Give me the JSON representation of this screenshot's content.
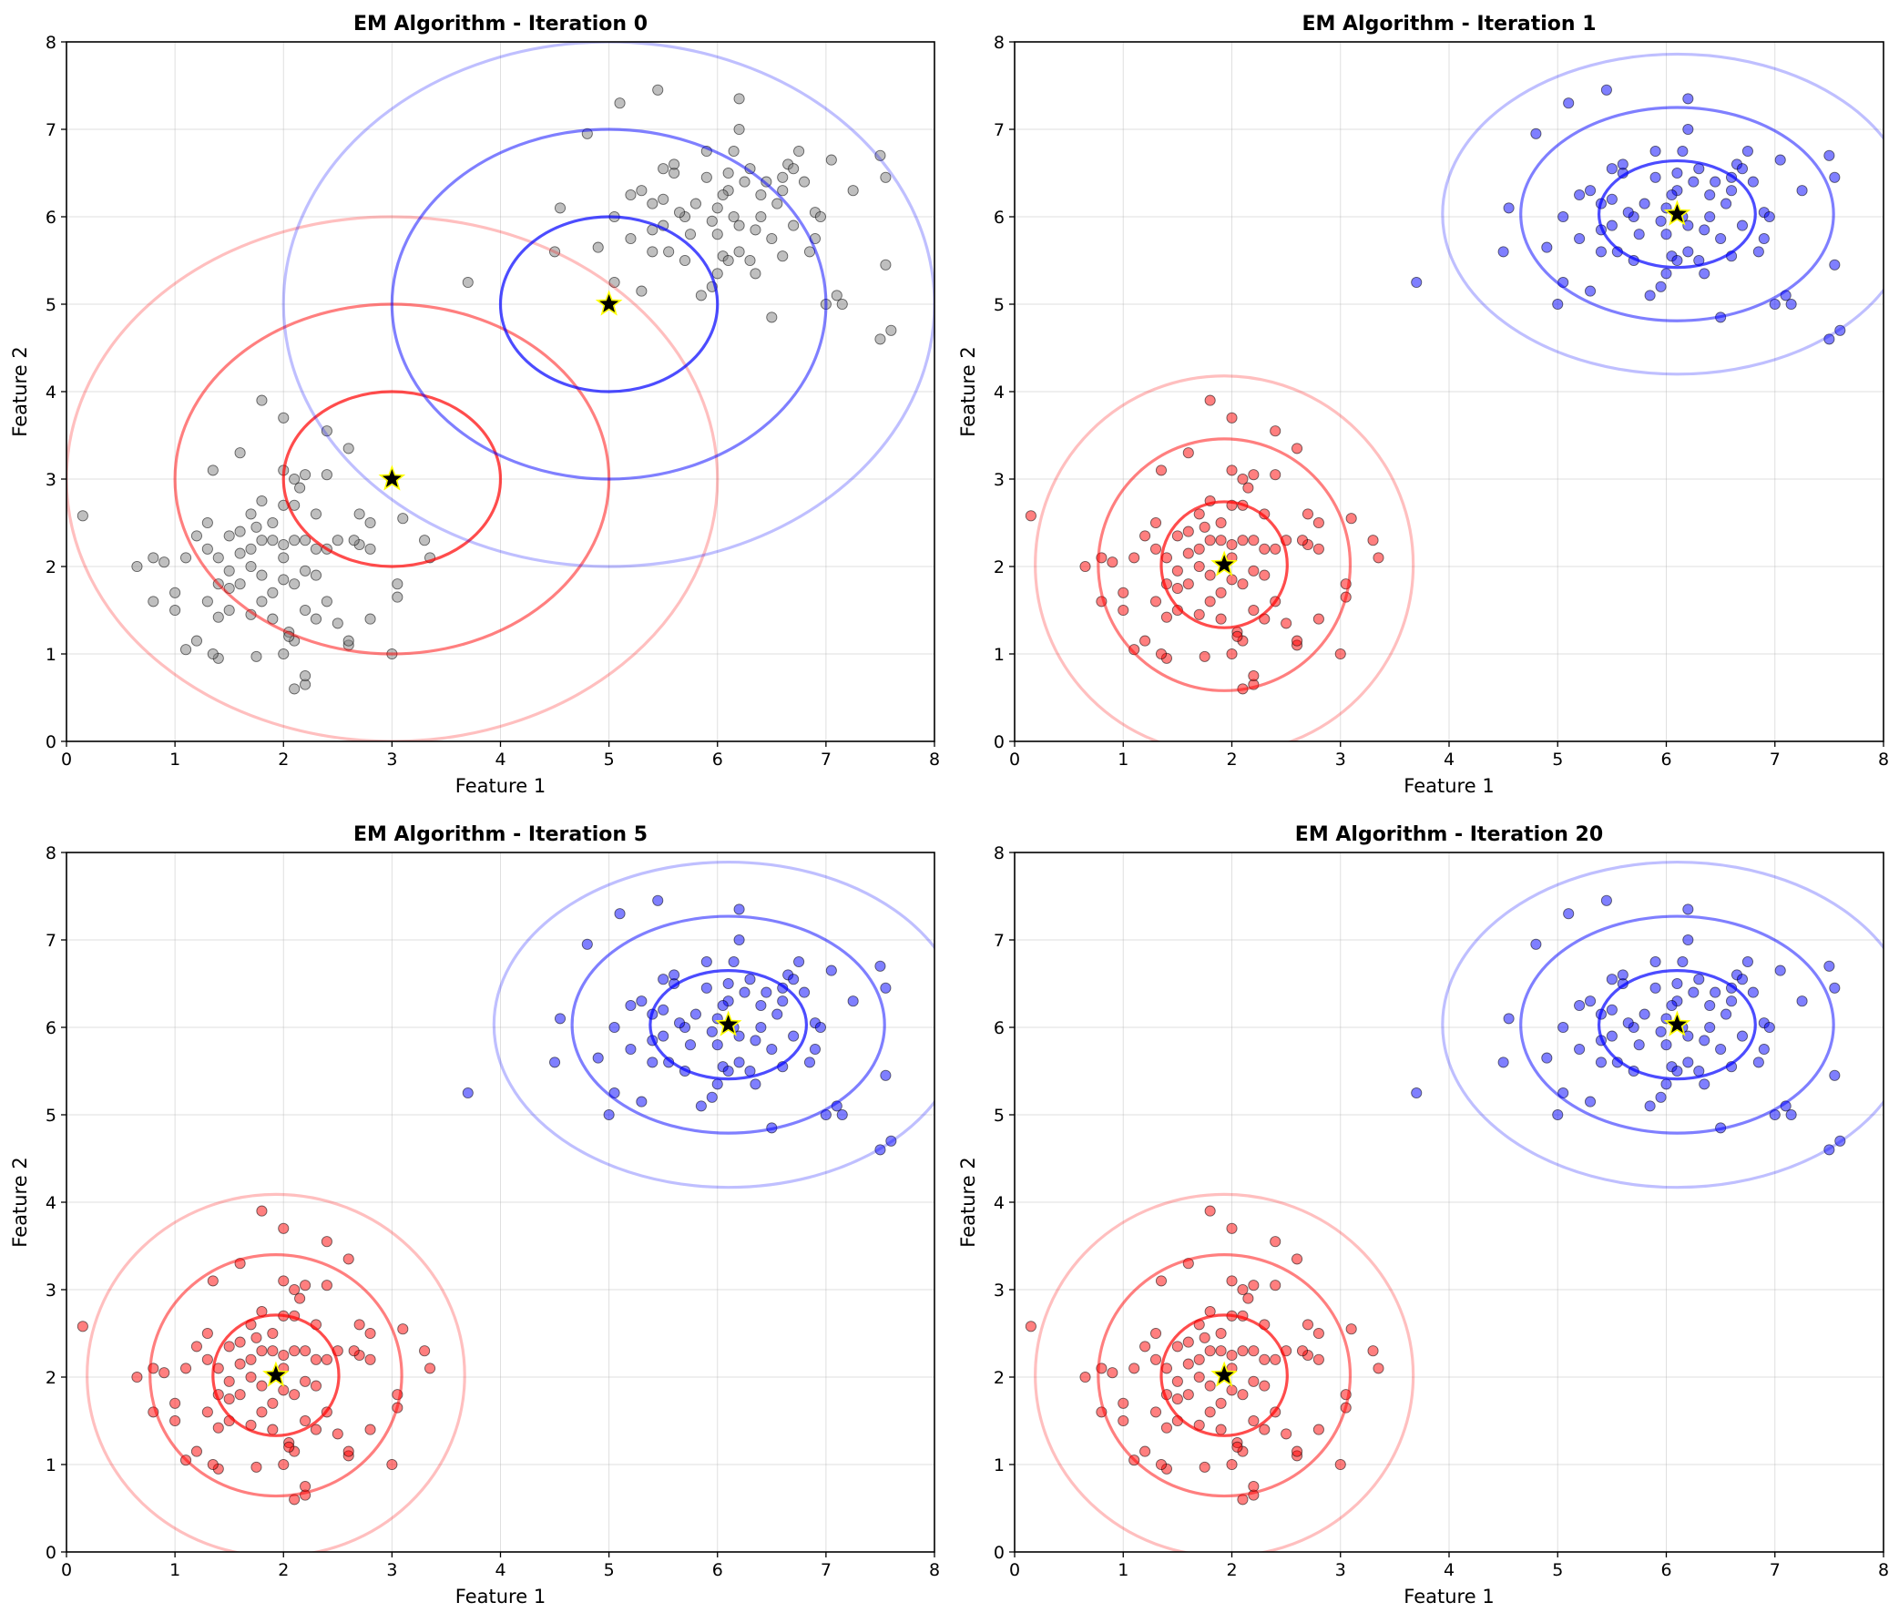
{
  "colors": {
    "unassigned": "#808080",
    "cluster1": "#ff0000",
    "cluster2": "#0000ff",
    "center_fill": "#000000",
    "center_outline": "#ffff00"
  },
  "points": [
    [
      2.0,
      3.1
    ],
    [
      2.1,
      3.0
    ],
    [
      2.0,
      2.7
    ],
    [
      1.7,
      2.6
    ],
    [
      1.9,
      2.5
    ],
    [
      2.1,
      2.7
    ],
    [
      2.2,
      2.3
    ],
    [
      1.9,
      2.3
    ],
    [
      2.0,
      2.25
    ],
    [
      1.6,
      2.15
    ],
    [
      1.7,
      2.0
    ],
    [
      1.8,
      1.9
    ],
    [
      2.0,
      1.85
    ],
    [
      2.2,
      1.95
    ],
    [
      2.3,
      2.2
    ],
    [
      2.1,
      1.8
    ],
    [
      1.9,
      1.7
    ],
    [
      1.6,
      1.8
    ],
    [
      1.5,
      1.75
    ],
    [
      1.4,
      1.8
    ],
    [
      1.4,
      2.1
    ],
    [
      1.3,
      2.2
    ],
    [
      1.2,
      2.35
    ],
    [
      1.3,
      2.5
    ],
    [
      1.5,
      2.35
    ],
    [
      1.6,
      2.4
    ],
    [
      1.7,
      2.2
    ],
    [
      1.8,
      2.3
    ],
    [
      1.1,
      2.1
    ],
    [
      0.9,
      2.05
    ],
    [
      0.8,
      2.1
    ],
    [
      0.65,
      2.0
    ],
    [
      1.0,
      1.7
    ],
    [
      0.8,
      1.6
    ],
    [
      1.0,
      1.5
    ],
    [
      1.3,
      1.6
    ],
    [
      1.5,
      1.5
    ],
    [
      1.7,
      1.45
    ],
    [
      1.9,
      1.4
    ],
    [
      2.05,
      1.25
    ],
    [
      2.1,
      1.15
    ],
    [
      2.05,
      1.2
    ],
    [
      2.0,
      1.0
    ],
    [
      2.1,
      0.6
    ],
    [
      2.2,
      0.65
    ],
    [
      2.2,
      0.75
    ],
    [
      1.75,
      0.97
    ],
    [
      1.4,
      0.95
    ],
    [
      1.35,
      1.0
    ],
    [
      1.2,
      1.15
    ],
    [
      1.1,
      1.05
    ],
    [
      1.4,
      1.42
    ],
    [
      1.8,
      1.6
    ],
    [
      2.2,
      1.5
    ],
    [
      2.3,
      1.4
    ],
    [
      2.4,
      1.6
    ],
    [
      2.5,
      1.35
    ],
    [
      2.6,
      1.1
    ],
    [
      2.6,
      1.15
    ],
    [
      2.8,
      1.4
    ],
    [
      3.0,
      1.0
    ],
    [
      3.05,
      1.65
    ],
    [
      3.05,
      1.8
    ],
    [
      2.8,
      2.2
    ],
    [
      2.7,
      2.25
    ],
    [
      2.65,
      2.3
    ],
    [
      2.7,
      2.6
    ],
    [
      2.8,
      2.5
    ],
    [
      2.5,
      2.3
    ],
    [
      2.4,
      2.2
    ],
    [
      2.3,
      1.9
    ],
    [
      2.1,
      2.3
    ],
    [
      2.3,
      2.6
    ],
    [
      2.4,
      3.05
    ],
    [
      2.2,
      3.05
    ],
    [
      2.6,
      3.35
    ],
    [
      2.4,
      3.55
    ],
    [
      2.0,
      3.7
    ],
    [
      1.8,
      3.9
    ],
    [
      1.6,
      3.3
    ],
    [
      1.35,
      3.1
    ],
    [
      0.15,
      2.58
    ],
    [
      1.8,
      2.75
    ],
    [
      2.15,
      2.9
    ],
    [
      3.3,
      2.3
    ],
    [
      3.35,
      2.1
    ],
    [
      3.1,
      2.55
    ],
    [
      2.0,
      2.1
    ],
    [
      1.5,
      1.95
    ],
    [
      1.75,
      2.45
    ],
    [
      3.7,
      5.25
    ],
    [
      4.5,
      5.6
    ],
    [
      4.55,
      6.1
    ],
    [
      4.8,
      6.95
    ],
    [
      4.9,
      5.65
    ],
    [
      5.0,
      5.0
    ],
    [
      5.05,
      5.25
    ],
    [
      5.05,
      6.0
    ],
    [
      5.1,
      7.3
    ],
    [
      5.2,
      5.75
    ],
    [
      5.3,
      6.3
    ],
    [
      5.3,
      5.15
    ],
    [
      5.4,
      5.6
    ],
    [
      5.4,
      5.85
    ],
    [
      5.4,
      6.15
    ],
    [
      5.5,
      5.9
    ],
    [
      5.5,
      6.2
    ],
    [
      5.55,
      5.6
    ],
    [
      5.6,
      6.5
    ],
    [
      5.6,
      6.6
    ],
    [
      5.7,
      6.0
    ],
    [
      5.7,
      5.5
    ],
    [
      5.75,
      5.8
    ],
    [
      5.8,
      6.15
    ],
    [
      5.85,
      5.1
    ],
    [
      5.9,
      6.45
    ],
    [
      5.9,
      6.75
    ],
    [
      5.95,
      5.95
    ],
    [
      6.0,
      5.8
    ],
    [
      6.0,
      6.1
    ],
    [
      6.0,
      5.35
    ],
    [
      6.05,
      5.55
    ],
    [
      6.1,
      5.5
    ],
    [
      6.1,
      6.3
    ],
    [
      6.1,
      6.5
    ],
    [
      6.15,
      6.0
    ],
    [
      6.2,
      5.6
    ],
    [
      6.2,
      5.9
    ],
    [
      6.2,
      7.0
    ],
    [
      6.25,
      6.4
    ],
    [
      6.3,
      6.55
    ],
    [
      6.3,
      5.5
    ],
    [
      6.35,
      5.85
    ],
    [
      6.4,
      6.25
    ],
    [
      6.4,
      6.0
    ],
    [
      6.45,
      6.4
    ],
    [
      6.5,
      4.85
    ],
    [
      6.5,
      5.75
    ],
    [
      6.55,
      6.15
    ],
    [
      6.6,
      6.45
    ],
    [
      6.6,
      5.55
    ],
    [
      6.65,
      6.6
    ],
    [
      6.7,
      5.9
    ],
    [
      6.75,
      6.75
    ],
    [
      6.8,
      6.4
    ],
    [
      6.85,
      5.6
    ],
    [
      6.9,
      6.05
    ],
    [
      6.95,
      6.0
    ],
    [
      7.0,
      5.0
    ],
    [
      7.05,
      6.65
    ],
    [
      7.1,
      5.1
    ],
    [
      7.15,
      5.0
    ],
    [
      7.25,
      6.3
    ],
    [
      7.5,
      4.6
    ],
    [
      7.55,
      5.45
    ],
    [
      7.6,
      4.7
    ],
    [
      7.5,
      6.7
    ],
    [
      7.55,
      6.45
    ],
    [
      6.2,
      7.35
    ],
    [
      5.45,
      7.45
    ],
    [
      6.35,
      5.35
    ],
    [
      6.15,
      6.75
    ],
    [
      5.2,
      6.25
    ],
    [
      5.65,
      6.05
    ],
    [
      6.9,
      5.75
    ],
    [
      5.95,
      5.2
    ],
    [
      6.6,
      6.3
    ],
    [
      5.5,
      6.55
    ],
    [
      6.05,
      6.25
    ],
    [
      6.7,
      6.55
    ]
  ],
  "chart_data": [
    {
      "type": "scatter",
      "title": "EM Algorithm - Iteration 0",
      "xlabel": "Feature 1",
      "ylabel": "Feature 2",
      "xlim": [
        0,
        8
      ],
      "ylim": [
        0,
        8
      ],
      "xticks": [
        "0",
        "1",
        "2",
        "3",
        "4",
        "5",
        "6",
        "7",
        "8"
      ],
      "yticks": [
        "0",
        "1",
        "2",
        "3",
        "4",
        "5",
        "6",
        "7",
        "8"
      ],
      "grid": true,
      "assigned": false,
      "components": [
        {
          "color": "#ff0000",
          "mean": [
            3.0,
            3.0
          ],
          "std": [
            1.0,
            1.0
          ]
        },
        {
          "color": "#0000ff",
          "mean": [
            5.0,
            5.0
          ],
          "std": [
            1.0,
            1.0
          ]
        }
      ]
    },
    {
      "type": "scatter",
      "title": "EM Algorithm - Iteration 1",
      "xlabel": "Feature 1",
      "ylabel": "Feature 2",
      "xlim": [
        0,
        8
      ],
      "ylim": [
        0,
        8
      ],
      "xticks": [
        "0",
        "1",
        "2",
        "3",
        "4",
        "5",
        "6",
        "7",
        "8"
      ],
      "yticks": [
        "0",
        "1",
        "2",
        "3",
        "4",
        "5",
        "6",
        "7",
        "8"
      ],
      "grid": true,
      "assigned": true,
      "components": [
        {
          "color": "#ff0000",
          "mean": [
            1.93,
            2.02
          ],
          "std": [
            0.58,
            0.72
          ]
        },
        {
          "color": "#0000ff",
          "mean": [
            6.1,
            6.03
          ],
          "std": [
            0.72,
            0.61
          ]
        }
      ]
    },
    {
      "type": "scatter",
      "title": "EM Algorithm - Iteration 5",
      "xlabel": "Feature 1",
      "ylabel": "Feature 2",
      "xlim": [
        0,
        8
      ],
      "ylim": [
        0,
        8
      ],
      "xticks": [
        "0",
        "1",
        "2",
        "3",
        "4",
        "5",
        "6",
        "7",
        "8"
      ],
      "yticks": [
        "0",
        "1",
        "2",
        "3",
        "4",
        "5",
        "6",
        "7",
        "8"
      ],
      "grid": true,
      "assigned": true,
      "components": [
        {
          "color": "#ff0000",
          "mean": [
            1.93,
            2.02
          ],
          "std": [
            0.58,
            0.69
          ]
        },
        {
          "color": "#0000ff",
          "mean": [
            6.1,
            6.03
          ],
          "std": [
            0.72,
            0.62
          ]
        }
      ]
    },
    {
      "type": "scatter",
      "title": "EM Algorithm - Iteration 20",
      "xlabel": "Feature 1",
      "ylabel": "Feature 2",
      "xlim": [
        0,
        8
      ],
      "ylim": [
        0,
        8
      ],
      "xticks": [
        "0",
        "1",
        "2",
        "3",
        "4",
        "5",
        "6",
        "7",
        "8"
      ],
      "yticks": [
        "0",
        "1",
        "2",
        "3",
        "4",
        "5",
        "6",
        "7",
        "8"
      ],
      "grid": true,
      "assigned": true,
      "components": [
        {
          "color": "#ff0000",
          "mean": [
            1.93,
            2.02
          ],
          "std": [
            0.58,
            0.69
          ]
        },
        {
          "color": "#0000ff",
          "mean": [
            6.1,
            6.03
          ],
          "std": [
            0.72,
            0.62
          ]
        }
      ]
    }
  ]
}
